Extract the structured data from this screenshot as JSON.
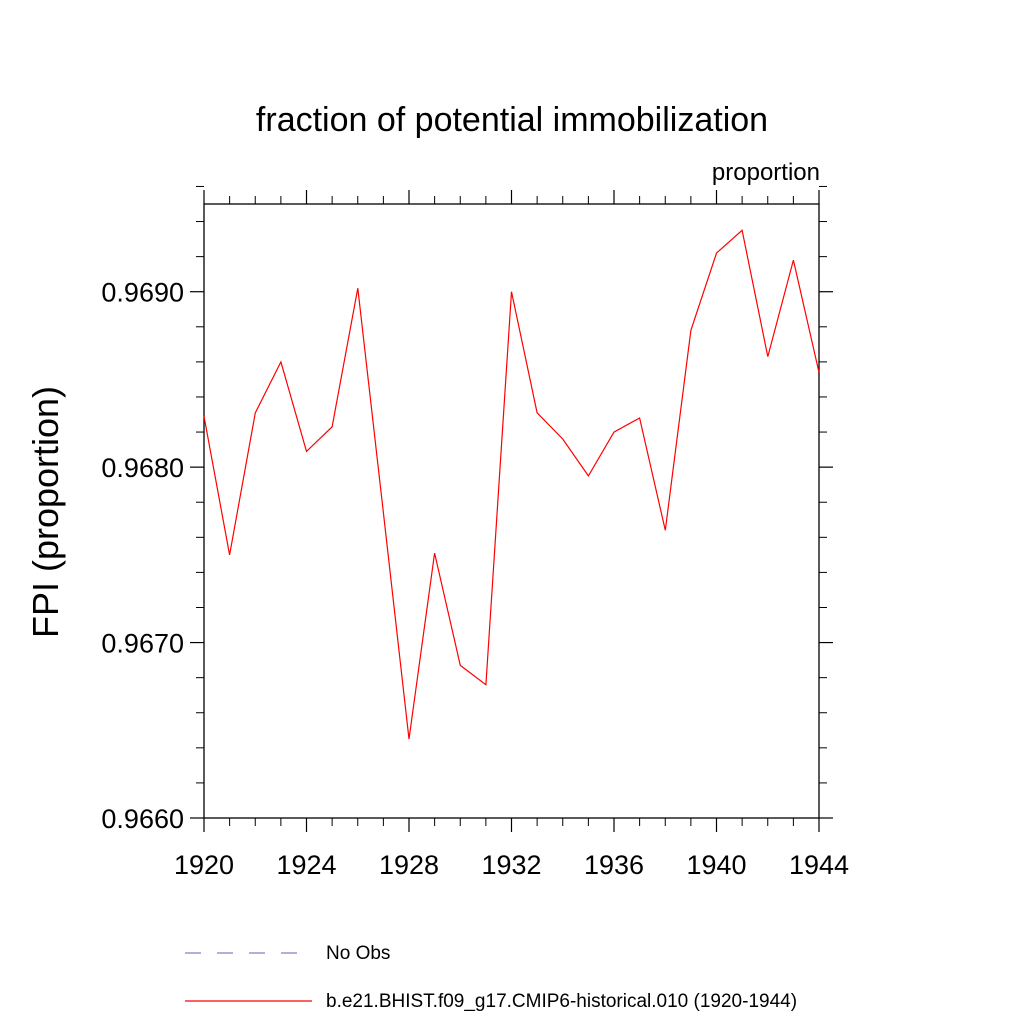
{
  "chart_data": {
    "type": "line",
    "title": "fraction of potential immobilization",
    "units_label": "proportion",
    "ylabel": "FPI  (proportion)",
    "xlabel": "",
    "xlim": [
      1920,
      1944
    ],
    "ylim": [
      0.966,
      0.9695
    ],
    "x_ticks": [
      1920,
      1924,
      1928,
      1932,
      1936,
      1940,
      1944
    ],
    "y_ticks": [
      0.966,
      0.967,
      0.968,
      0.969
    ],
    "y_tick_labels": [
      "0.9660",
      "0.9670",
      "0.9680",
      "0.9690"
    ],
    "x_tick_labels": [
      "1920",
      "1924",
      "1928",
      "1932",
      "1936",
      "1940",
      "1944"
    ],
    "y_minor_step": 0.0002,
    "x_minor_step": 1,
    "series": [
      {
        "name": "b.e21.BHIST.f09_g17.CMIP6-historical.010 (1920-1944)",
        "color": "#ff0000",
        "style": "solid",
        "x": [
          1920,
          1921,
          1922,
          1923,
          1924,
          1925,
          1926,
          1927,
          1928,
          1929,
          1930,
          1931,
          1932,
          1933,
          1934,
          1935,
          1936,
          1937,
          1938,
          1939,
          1940,
          1941,
          1942,
          1943,
          1944
        ],
        "values": [
          0.96829,
          0.9675,
          0.96831,
          0.9686,
          0.96809,
          0.96823,
          0.96902,
          0.96774,
          0.96645,
          0.96751,
          0.96687,
          0.96676,
          0.969,
          0.96831,
          0.96816,
          0.96795,
          0.9682,
          0.96828,
          0.96764,
          0.96878,
          0.96922,
          0.96935,
          0.96863,
          0.96918,
          0.96854
        ]
      },
      {
        "name": "No Obs",
        "color": "#8080cc",
        "style": "dashed",
        "x": [],
        "values": []
      }
    ],
    "legend": {
      "placement": "bottom",
      "entries": [
        "No Obs",
        "b.e21.BHIST.f09_g17.CMIP6-historical.010 (1920-1944)"
      ]
    }
  }
}
